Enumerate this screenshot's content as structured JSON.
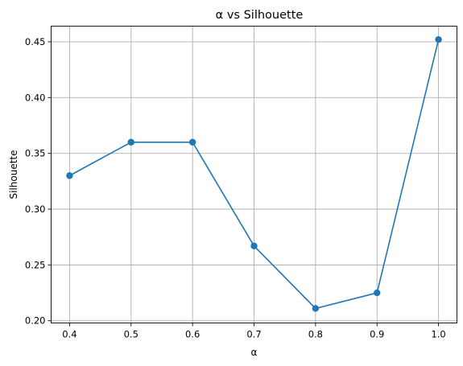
{
  "chart_data": {
    "type": "line",
    "title": "α vs Silhouette",
    "xlabel": "α",
    "ylabel": "Silhouette",
    "x": [
      0.4,
      0.5,
      0.6,
      0.7,
      0.8,
      0.9,
      1.0
    ],
    "series": [
      {
        "values": [
          0.33,
          0.36,
          0.36,
          0.267,
          0.211,
          0.225,
          0.452
        ],
        "color": "#1f77b4"
      }
    ],
    "xlim": [
      0.37,
      1.03
    ],
    "ylim": [
      0.198,
      0.464
    ],
    "xticks": [
      0.4,
      0.5,
      0.6,
      0.7,
      0.8,
      0.9,
      1.0
    ],
    "xtick_labels": [
      "0.4",
      "0.5",
      "0.6",
      "0.7",
      "0.8",
      "0.9",
      "1.0"
    ],
    "yticks": [
      0.2,
      0.25,
      0.3,
      0.35,
      0.4,
      0.45
    ],
    "ytick_labels": [
      "0.20",
      "0.25",
      "0.30",
      "0.35",
      "0.40",
      "0.45"
    ],
    "grid": true,
    "marker": "circle"
  }
}
